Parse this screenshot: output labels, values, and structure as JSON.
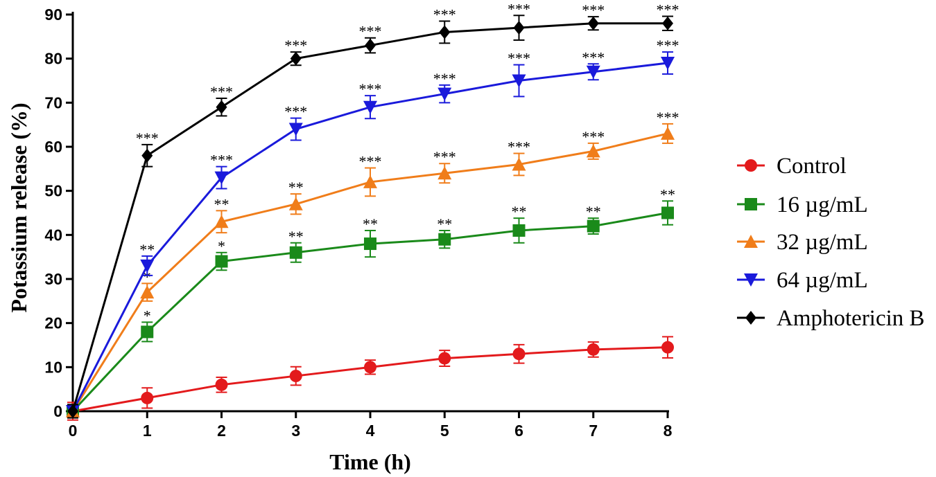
{
  "chart_data": {
    "type": "line",
    "title": "",
    "xlabel": "Time (h)",
    "ylabel": "Potassium release (%)",
    "x": [
      0,
      1,
      2,
      3,
      4,
      5,
      6,
      7,
      8
    ],
    "xlim": [
      0,
      8
    ],
    "ylim": [
      0,
      90
    ],
    "xticks": [
      "0",
      "1",
      "2",
      "3",
      "4",
      "5",
      "6",
      "7",
      "8"
    ],
    "yticks": [
      "0",
      "10",
      "20",
      "30",
      "40",
      "50",
      "60",
      "70",
      "80",
      "90"
    ],
    "grid": false,
    "legend_position": "right",
    "series": [
      {
        "name": "Control",
        "color": "#e31a1c",
        "marker": "circle",
        "values": [
          0,
          3,
          6,
          8,
          10,
          12,
          13,
          14,
          14.5
        ],
        "errors": [
          2,
          2.3,
          1.7,
          2.1,
          1.6,
          1.8,
          2.1,
          1.7,
          2.4
        ],
        "significance": [
          "",
          "",
          "",
          "",
          "",
          "",
          "",
          "",
          ""
        ]
      },
      {
        "name": "16 µg/mL",
        "color": "#1a8a1a",
        "marker": "square",
        "values": [
          0,
          18,
          34,
          36,
          38,
          39,
          41,
          42,
          45
        ],
        "errors": [
          1.5,
          2.2,
          2,
          2.2,
          3,
          2,
          2.8,
          1.8,
          2.7
        ],
        "significance": [
          "",
          "*",
          "*",
          "**",
          "**",
          "**",
          "**",
          "**",
          "**"
        ]
      },
      {
        "name": "32 µg/mL",
        "color": "#f07d1a",
        "marker": "triangle-up",
        "values": [
          0,
          27,
          43,
          47,
          52,
          54,
          56,
          59,
          63
        ],
        "errors": [
          1.5,
          2,
          2.5,
          2.3,
          3.2,
          2.2,
          2.5,
          1.8,
          2.2
        ],
        "significance": [
          "",
          "*",
          "**",
          "**",
          "***",
          "***",
          "***",
          "***",
          "***"
        ]
      },
      {
        "name": "64 µg/mL",
        "color": "#1a1adb",
        "marker": "triangle-down",
        "values": [
          0,
          33,
          53,
          64,
          69,
          72,
          75,
          77,
          79
        ],
        "errors": [
          1.5,
          2.2,
          2.5,
          2.5,
          2.6,
          2,
          3.6,
          1.8,
          2.5
        ],
        "significance": [
          "",
          "**",
          "***",
          "***",
          "***",
          "***",
          "***",
          "***",
          "***"
        ]
      },
      {
        "name": "Amphotericin B",
        "color": "#000000",
        "marker": "diamond",
        "values": [
          0,
          58,
          69,
          80,
          83,
          86,
          87,
          88,
          88
        ],
        "errors": [
          1.5,
          2.5,
          2,
          1.5,
          1.7,
          2.5,
          2.8,
          1.5,
          1.6
        ],
        "significance": [
          "",
          "***",
          "***",
          "***",
          "***",
          "***",
          "***",
          "***",
          "***"
        ]
      }
    ]
  }
}
